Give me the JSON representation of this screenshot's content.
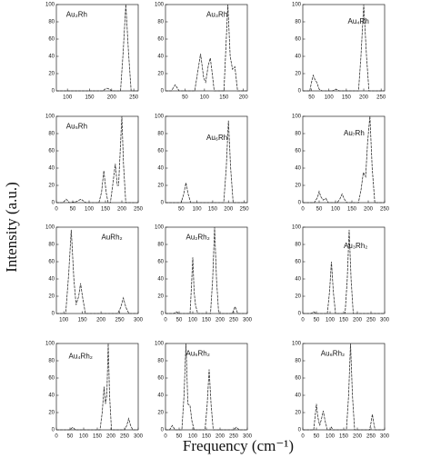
{
  "ylabel": "Intensity (a.u.)",
  "xlabel": "Frequency (cm⁻¹)",
  "chart_data": [
    {
      "type": "line",
      "title": "Au₂Rh",
      "color": "#333333",
      "xlim": [
        75,
        260
      ],
      "ylim": [
        0,
        100
      ],
      "xticks": [
        100,
        150,
        200,
        250
      ],
      "yticks": [
        0,
        20,
        40,
        60,
        80,
        100
      ],
      "x": [
        75,
        180,
        185,
        190,
        195,
        200,
        220,
        226,
        232,
        238,
        244,
        260
      ],
      "values": [
        0,
        0,
        2,
        3,
        2,
        0,
        0,
        45,
        100,
        45,
        0,
        0
      ]
    },
    {
      "type": "line",
      "title": "Au₃Rh",
      "color": "#333333",
      "xlim": [
        0,
        210
      ],
      "ylim": [
        0,
        100
      ],
      "xticks": [
        50,
        100,
        150,
        200
      ],
      "yticks": [
        0,
        20,
        40,
        60,
        80,
        100
      ],
      "x": [
        0,
        15,
        25,
        35,
        75,
        82,
        90,
        98,
        103,
        110,
        115,
        120,
        125,
        150,
        155,
        160,
        166,
        172,
        178,
        185,
        210
      ],
      "values": [
        0,
        0,
        7,
        0,
        0,
        20,
        43,
        15,
        10,
        30,
        38,
        20,
        0,
        0,
        50,
        100,
        40,
        25,
        28,
        0,
        0
      ]
    },
    {
      "type": "line",
      "title": "Au₄Rh",
      "color": "#333333",
      "xlim": [
        25,
        260
      ],
      "ylim": [
        0,
        100
      ],
      "xticks": [
        50,
        100,
        150,
        200,
        250
      ],
      "yticks": [
        0,
        20,
        40,
        60,
        80,
        100
      ],
      "x": [
        25,
        45,
        50,
        55,
        60,
        65,
        72,
        80,
        110,
        120,
        130,
        185,
        192,
        200,
        208,
        215,
        260
      ],
      "values": [
        0,
        0,
        10,
        18,
        13,
        10,
        2,
        0,
        0,
        2,
        0,
        0,
        40,
        100,
        40,
        0,
        0
      ]
    },
    {
      "type": "line",
      "title": "Au₅Rh",
      "color": "#333333",
      "xlim": [
        0,
        250
      ],
      "ylim": [
        0,
        100
      ],
      "xticks": [
        0,
        50,
        100,
        150,
        200,
        250
      ],
      "yticks": [
        0,
        20,
        40,
        60,
        80,
        100
      ],
      "x": [
        0,
        20,
        30,
        40,
        60,
        75,
        90,
        130,
        138,
        145,
        152,
        158,
        165,
        172,
        180,
        186,
        190,
        195,
        200,
        205,
        212,
        250
      ],
      "values": [
        0,
        0,
        4,
        0,
        1,
        4,
        0,
        0,
        12,
        37,
        12,
        0,
        0,
        20,
        45,
        20,
        20,
        60,
        100,
        45,
        0,
        0
      ]
    },
    {
      "type": "line",
      "title": "Au₆Rh",
      "color": "#333333",
      "xlim": [
        0,
        260
      ],
      "ylim": [
        0,
        100
      ],
      "xticks": [
        50,
        100,
        150,
        200,
        250
      ],
      "yticks": [
        0,
        20,
        40,
        60,
        80,
        100
      ],
      "x": [
        0,
        50,
        58,
        65,
        72,
        80,
        185,
        193,
        200,
        207,
        215,
        260
      ],
      "values": [
        0,
        0,
        10,
        23,
        10,
        0,
        0,
        40,
        95,
        40,
        0,
        0
      ]
    },
    {
      "type": "line",
      "title": "Au₇Rh",
      "color": "#333333",
      "xlim": [
        0,
        250
      ],
      "ylim": [
        0,
        100
      ],
      "xticks": [
        0,
        50,
        100,
        150,
        200,
        250
      ],
      "yticks": [
        0,
        20,
        40,
        60,
        80,
        100
      ],
      "x": [
        0,
        35,
        45,
        50,
        55,
        62,
        70,
        78,
        105,
        113,
        120,
        127,
        135,
        170,
        178,
        185,
        192,
        198,
        205,
        212,
        220,
        250
      ],
      "values": [
        0,
        0,
        6,
        13,
        7,
        3,
        5,
        0,
        0,
        4,
        10,
        4,
        0,
        0,
        15,
        35,
        30,
        70,
        100,
        40,
        0,
        0
      ]
    },
    {
      "type": "line",
      "title": "AuRh₂",
      "color": "#333333",
      "xlim": [
        80,
        300
      ],
      "ylim": [
        0,
        100
      ],
      "xticks": [
        100,
        150,
        200,
        250,
        300
      ],
      "yticks": [
        0,
        20,
        40,
        60,
        80,
        100
      ],
      "x": [
        80,
        105,
        113,
        120,
        127,
        133,
        140,
        145,
        150,
        158,
        245,
        253,
        260,
        267,
        275,
        300
      ],
      "values": [
        0,
        0,
        45,
        97,
        40,
        10,
        20,
        35,
        20,
        0,
        0,
        7,
        18,
        7,
        0,
        0
      ]
    },
    {
      "type": "line",
      "title": "Au₂Rh₂",
      "color": "#333333",
      "xlim": [
        0,
        300
      ],
      "ylim": [
        0,
        100
      ],
      "xticks": [
        0,
        50,
        100,
        150,
        200,
        250,
        300
      ],
      "yticks": [
        0,
        20,
        40,
        60,
        80,
        100
      ],
      "x": [
        0,
        30,
        40,
        50,
        90,
        95,
        100,
        105,
        110,
        118,
        165,
        173,
        180,
        187,
        195,
        245,
        250,
        255,
        260,
        265,
        300
      ],
      "values": [
        0,
        0,
        2,
        0,
        0,
        30,
        65,
        25,
        10,
        0,
        0,
        40,
        100,
        40,
        0,
        0,
        4,
        8,
        4,
        0,
        0
      ]
    },
    {
      "type": "line",
      "title": "Au₃Rh₂",
      "color": "#333333",
      "xlim": [
        0,
        300
      ],
      "ylim": [
        0,
        100
      ],
      "xticks": [
        0,
        50,
        100,
        150,
        200,
        250,
        300
      ],
      "yticks": [
        0,
        20,
        40,
        60,
        80,
        100
      ],
      "x": [
        0,
        30,
        40,
        50,
        90,
        98,
        105,
        112,
        120,
        155,
        163,
        170,
        177,
        185,
        300
      ],
      "values": [
        0,
        0,
        2,
        0,
        0,
        25,
        60,
        25,
        0,
        0,
        40,
        97,
        40,
        0,
        0
      ]
    },
    {
      "type": "line",
      "title": "Au₄Rh₂",
      "color": "#333333",
      "xlim": [
        0,
        300
      ],
      "ylim": [
        0,
        100
      ],
      "xticks": [
        0,
        50,
        100,
        150,
        200,
        250,
        300
      ],
      "yticks": [
        0,
        20,
        40,
        60,
        80,
        100
      ],
      "x": [
        0,
        50,
        60,
        70,
        160,
        168,
        175,
        180,
        185,
        190,
        195,
        202,
        250,
        258,
        265,
        272,
        280,
        300
      ],
      "values": [
        0,
        0,
        3,
        0,
        0,
        20,
        50,
        30,
        40,
        100,
        40,
        0,
        0,
        5,
        13,
        5,
        0,
        0
      ]
    },
    {
      "type": "line",
      "title": "Au₅Rh₂",
      "color": "#333333",
      "xlim": [
        0,
        300
      ],
      "ylim": [
        0,
        100
      ],
      "xticks": [
        0,
        50,
        100,
        150,
        200,
        250,
        300
      ],
      "yticks": [
        0,
        20,
        40,
        60,
        80,
        100
      ],
      "x": [
        0,
        15,
        25,
        35,
        60,
        68,
        75,
        82,
        90,
        97,
        105,
        145,
        153,
        160,
        167,
        175,
        250,
        260,
        270,
        300
      ],
      "values": [
        0,
        0,
        5,
        0,
        0,
        40,
        100,
        30,
        28,
        10,
        0,
        0,
        30,
        70,
        30,
        0,
        0,
        3,
        0,
        0
      ]
    },
    {
      "type": "line",
      "title": "Au₆Rh₂",
      "color": "#333333",
      "xlim": [
        0,
        300
      ],
      "ylim": [
        0,
        100
      ],
      "xticks": [
        0,
        50,
        100,
        150,
        200,
        250,
        300
      ],
      "yticks": [
        0,
        20,
        40,
        60,
        80,
        100
      ],
      "x": [
        0,
        40,
        45,
        50,
        55,
        62,
        68,
        75,
        82,
        90,
        100,
        105,
        110,
        160,
        168,
        175,
        182,
        190,
        245,
        250,
        255,
        260,
        265,
        300
      ],
      "values": [
        0,
        0,
        15,
        30,
        15,
        5,
        12,
        22,
        10,
        0,
        0,
        3,
        0,
        0,
        40,
        100,
        40,
        0,
        0,
        8,
        18,
        8,
        0,
        0
      ]
    }
  ]
}
